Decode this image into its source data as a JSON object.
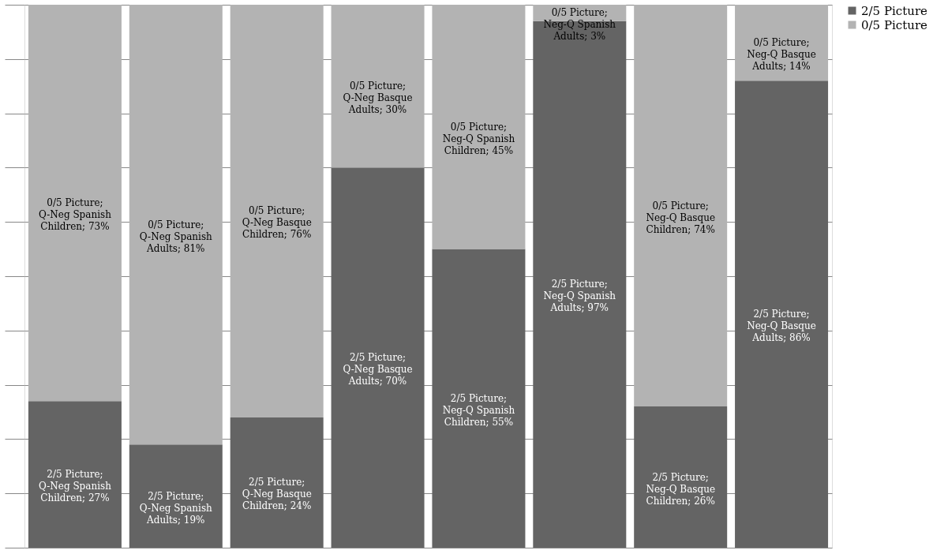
{
  "chart_data": {
    "type": "bar",
    "stacked": true,
    "categories": [
      null,
      null,
      null,
      null,
      null,
      null,
      null,
      null
    ],
    "series": [
      {
        "name": "2/5 Picture",
        "color": "#646464",
        "values": [
          27,
          19,
          24,
          70,
          55,
          97,
          26,
          86
        ],
        "value_labels": [
          "2/5 Picture; Q-Neg Spanish Children; 27%",
          "2/5 Picture; Q-Neg Spanish Adults; 19%",
          "2/5 Picture; Q-Neg Basque Children; 24%",
          "2/5 Picture; Q-Neg Basque Adults; 70%",
          "2/5 Picture; Neg-Q Spanish Children; 55%",
          "2/5 Picture; Neg-Q Spanish Adults; 97%",
          "2/5 Picture; Neg-Q Basque Children; 26%",
          "2/5 Picture; Neg-Q Basque Adults; 86%"
        ]
      },
      {
        "name": "0/5 Picture",
        "color": "#b3b3b3",
        "values": [
          73,
          81,
          76,
          30,
          45,
          3,
          74,
          14
        ],
        "value_labels": [
          "0/5 Picture; Q-Neg Spanish Children; 73%",
          "0/5 Picture; Q-Neg Spanish Adults; 81%",
          "0/5 Picture; Q-Neg Basque Children; 76%",
          "0/5 Picture; Q-Neg Basque Adults; 30%",
          "0/5 Picture; Neg-Q Spanish Children; 45%",
          "0/5 Picture; Neg-Q Spanish Adults; 3%",
          "0/5 Picture; Neg-Q Basque Children; 74%",
          "0/5 Picture; Neg-Q Basque Adults; 14%"
        ]
      }
    ],
    "ylim": [
      0,
      100
    ],
    "yticks": [
      {
        "value": 0,
        "label": null
      },
      {
        "value": 10,
        "label": null
      },
      {
        "value": 20,
        "label": null
      },
      {
        "value": 30,
        "label": null
      },
      {
        "value": 40,
        "label": null
      },
      {
        "value": 50,
        "label": null
      },
      {
        "value": 60,
        "label": null
      },
      {
        "value": 70,
        "label": null
      },
      {
        "value": 80,
        "label": null
      },
      {
        "value": 90,
        "label": null
      },
      {
        "value": 100,
        "label": null
      }
    ],
    "grid": "y",
    "legend": "right",
    "tick_labels": false
  }
}
